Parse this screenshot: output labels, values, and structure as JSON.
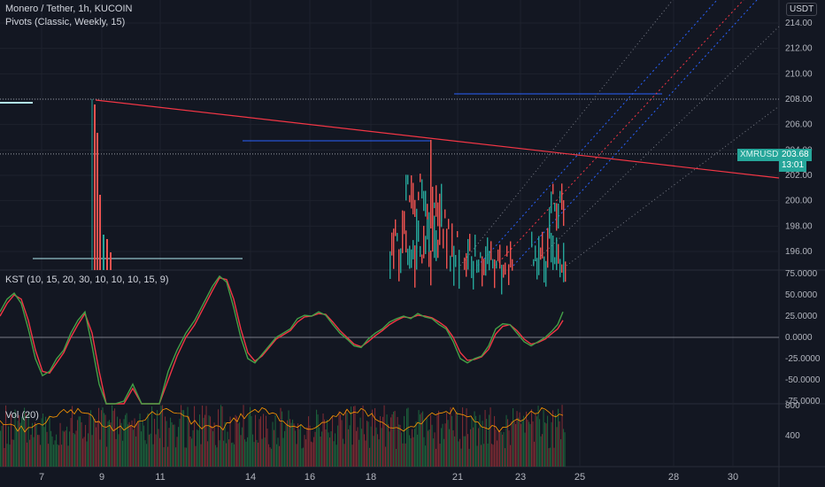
{
  "chart_data": {
    "type": "candlestick",
    "symbol_title": "Monero / Tether, 1h, KUCOIN",
    "indicator_pivots": "Pivots (Classic, Weekly, 15)",
    "currency": "USDT",
    "price_axis_labels": [
      "214.00",
      "212.00",
      "210.00",
      "208.00",
      "206.00",
      "204.00",
      "202.00",
      "200.00",
      "198.00",
      "196.00"
    ],
    "price_ticks": [
      214,
      212,
      210,
      208,
      206,
      204,
      202,
      200,
      198,
      196
    ],
    "last_price": "203.68",
    "countdown": "13:01",
    "ticker_tag": "XMRUSDT",
    "kst": {
      "label": "KST (10, 15, 20, 30, 10, 10, 10, 15, 9)",
      "axis_labels": [
        "75.0000",
        "50.0000",
        "25.0000",
        "0.0000",
        "-25.0000",
        "-50.0000",
        "-75.0000"
      ],
      "ticks": [
        75,
        50,
        25,
        0,
        -25,
        -50,
        -75
      ],
      "kst_line": [
        [
          0,
          30
        ],
        [
          8,
          45
        ],
        [
          16,
          52
        ],
        [
          24,
          40
        ],
        [
          32,
          10
        ],
        [
          40,
          -25
        ],
        [
          48,
          -45
        ],
        [
          56,
          -40
        ],
        [
          64,
          -25
        ],
        [
          72,
          -15
        ],
        [
          80,
          5
        ],
        [
          88,
          20
        ],
        [
          96,
          30
        ],
        [
          104,
          -10
        ],
        [
          112,
          -55
        ],
        [
          120,
          -90
        ],
        [
          130,
          -100
        ],
        [
          140,
          -75
        ],
        [
          150,
          -55
        ],
        [
          160,
          -90
        ],
        [
          170,
          -110
        ],
        [
          180,
          -80
        ],
        [
          190,
          -40
        ],
        [
          200,
          -15
        ],
        [
          210,
          5
        ],
        [
          220,
          20
        ],
        [
          230,
          40
        ],
        [
          240,
          60
        ],
        [
          248,
          72
        ],
        [
          256,
          65
        ],
        [
          264,
          35
        ],
        [
          272,
          0
        ],
        [
          280,
          -25
        ],
        [
          288,
          -30
        ],
        [
          296,
          -20
        ],
        [
          304,
          -10
        ],
        [
          312,
          0
        ],
        [
          320,
          5
        ],
        [
          328,
          10
        ],
        [
          336,
          22
        ],
        [
          344,
          26
        ],
        [
          352,
          25
        ],
        [
          360,
          30
        ],
        [
          368,
          26
        ],
        [
          376,
          15
        ],
        [
          384,
          5
        ],
        [
          392,
          -2
        ],
        [
          400,
          -10
        ],
        [
          408,
          -12
        ],
        [
          416,
          -2
        ],
        [
          424,
          5
        ],
        [
          432,
          10
        ],
        [
          440,
          18
        ],
        [
          448,
          22
        ],
        [
          456,
          25
        ],
        [
          464,
          22
        ],
        [
          472,
          28
        ],
        [
          480,
          24
        ],
        [
          488,
          22
        ],
        [
          496,
          15
        ],
        [
          504,
          10
        ],
        [
          512,
          -5
        ],
        [
          520,
          -25
        ],
        [
          528,
          -30
        ],
        [
          536,
          -25
        ],
        [
          544,
          -22
        ],
        [
          552,
          -10
        ],
        [
          560,
          10
        ],
        [
          568,
          16
        ],
        [
          576,
          15
        ],
        [
          584,
          5
        ],
        [
          592,
          -5
        ],
        [
          600,
          -10
        ],
        [
          608,
          -5
        ],
        [
          616,
          0
        ],
        [
          624,
          8
        ],
        [
          630,
          15
        ],
        [
          636,
          30
        ]
      ],
      "signal_line": [
        [
          0,
          25
        ],
        [
          8,
          40
        ],
        [
          16,
          50
        ],
        [
          24,
          45
        ],
        [
          32,
          20
        ],
        [
          40,
          -15
        ],
        [
          48,
          -40
        ],
        [
          56,
          -42
        ],
        [
          64,
          -30
        ],
        [
          72,
          -18
        ],
        [
          80,
          0
        ],
        [
          88,
          15
        ],
        [
          96,
          28
        ],
        [
          104,
          5
        ],
        [
          112,
          -40
        ],
        [
          120,
          -80
        ],
        [
          130,
          -95
        ],
        [
          140,
          -80
        ],
        [
          150,
          -60
        ],
        [
          160,
          -85
        ],
        [
          170,
          -105
        ],
        [
          180,
          -85
        ],
        [
          190,
          -50
        ],
        [
          200,
          -22
        ],
        [
          210,
          0
        ],
        [
          220,
          15
        ],
        [
          230,
          35
        ],
        [
          240,
          55
        ],
        [
          248,
          70
        ],
        [
          256,
          68
        ],
        [
          264,
          45
        ],
        [
          272,
          10
        ],
        [
          280,
          -18
        ],
        [
          288,
          -28
        ],
        [
          296,
          -22
        ],
        [
          304,
          -12
        ],
        [
          312,
          -2
        ],
        [
          320,
          3
        ],
        [
          328,
          8
        ],
        [
          336,
          18
        ],
        [
          344,
          24
        ],
        [
          352,
          25
        ],
        [
          360,
          28
        ],
        [
          368,
          27
        ],
        [
          376,
          18
        ],
        [
          384,
          8
        ],
        [
          392,
          0
        ],
        [
          400,
          -8
        ],
        [
          408,
          -11
        ],
        [
          416,
          -5
        ],
        [
          424,
          2
        ],
        [
          432,
          8
        ],
        [
          440,
          15
        ],
        [
          448,
          20
        ],
        [
          456,
          24
        ],
        [
          464,
          23
        ],
        [
          472,
          26
        ],
        [
          480,
          25
        ],
        [
          488,
          23
        ],
        [
          496,
          18
        ],
        [
          504,
          12
        ],
        [
          512,
          0
        ],
        [
          520,
          -18
        ],
        [
          528,
          -27
        ],
        [
          536,
          -26
        ],
        [
          544,
          -23
        ],
        [
          552,
          -14
        ],
        [
          560,
          4
        ],
        [
          568,
          13
        ],
        [
          576,
          15
        ],
        [
          584,
          8
        ],
        [
          592,
          -2
        ],
        [
          600,
          -8
        ],
        [
          608,
          -6
        ],
        [
          616,
          -2
        ],
        [
          624,
          5
        ],
        [
          630,
          10
        ],
        [
          636,
          20
        ]
      ]
    },
    "volume": {
      "label": "Vol (20)",
      "axis_labels": [
        "800",
        "400"
      ]
    },
    "date_labels": [
      "7",
      "9",
      "11",
      "14",
      "16",
      "18",
      "21",
      "23",
      "25",
      "28",
      "30"
    ],
    "colors": {
      "up": "#26a69a",
      "down": "#ef5350",
      "trendline": "#f23645",
      "kst": "#43a047",
      "signal": "#f23645",
      "background": "#131722"
    }
  }
}
